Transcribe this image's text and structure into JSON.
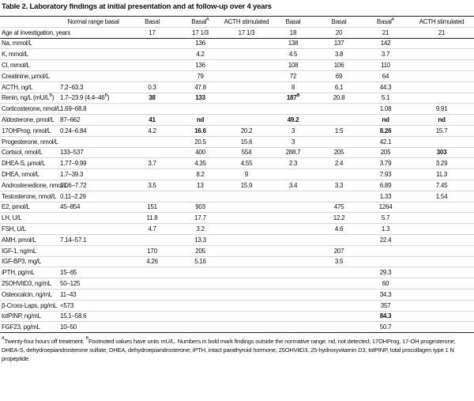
{
  "title": "Table 2. Laboratory findings at initial presentation and at follow-up over 4 years",
  "table": {
    "header": [
      "",
      "Normal range basal",
      "Basal",
      {
        "text": "Basal",
        "sup": "A"
      },
      "ACTH stimulated",
      "Basal",
      "Basal",
      {
        "text": "Basal",
        "sup": "A"
      },
      "ACTH stimulated"
    ],
    "age_row": [
      "Age at investigation, years",
      "",
      "17",
      "17 1/3",
      "17 1/3",
      "18",
      "20",
      "21",
      "21"
    ],
    "rows": [
      [
        "Na, mmol/L",
        "",
        "",
        "136",
        "",
        "138",
        "137",
        "142",
        ""
      ],
      [
        "K, mmol/L",
        "",
        "",
        "4.2",
        "",
        "4.5",
        "3.8",
        "3.7",
        ""
      ],
      [
        "Cl, mmol/L",
        "",
        "",
        "136",
        "",
        "108",
        "106",
        "110",
        ""
      ],
      [
        "Creatinine, µmol/L",
        "",
        "",
        "79",
        "",
        "72",
        "69",
        "64",
        ""
      ],
      [
        "ACTH, ng/L",
        "7.2–63.3",
        "0.3",
        "47.8",
        "",
        "8",
        "6.1",
        "44.3",
        ""
      ],
      [
        {
          "text": "Renin, ng/L (mU/L",
          "sup": "B",
          "after": ")"
        },
        {
          "text": "1.7–23.9 (4.4–46",
          "sup": "B",
          "after": ")"
        },
        {
          "text": "38",
          "bold": true
        },
        {
          "text": "133",
          "bold": true
        },
        "",
        {
          "text": "187",
          "sup": "B",
          "bold": true
        },
        "20.8",
        "5.1",
        ""
      ],
      [
        "Corticosterone, nmol/L",
        "1.69–68.8",
        "",
        "",
        "",
        "",
        "",
        "1.08",
        "9.91"
      ],
      [
        "Aldosterone, pmol/L",
        "87–662",
        {
          "text": "41",
          "bold": true
        },
        {
          "text": "nd",
          "bold": true
        },
        "",
        {
          "text": "49.2",
          "bold": true
        },
        "",
        {
          "text": "nd",
          "bold": true
        },
        {
          "text": "nd",
          "bold": true
        }
      ],
      [
        "17OHProg, nmol/L",
        "0.24–6.84",
        "4.2",
        {
          "text": "16.6",
          "bold": true
        },
        "20.2",
        "3",
        "1.5",
        {
          "text": "8.26",
          "bold": true
        },
        "15.7"
      ],
      [
        "Progesterone, nmol/L",
        "",
        "",
        "20.5",
        "15.6",
        "3",
        "",
        "42.1",
        ""
      ],
      [
        "Cortisol, nmol/L",
        "133–537",
        "",
        "400",
        "554",
        "288.7",
        "205",
        "205",
        {
          "text": "303",
          "bold": true
        }
      ],
      [
        "DHEA-S, µmol/L",
        "1.77–9.99",
        "3.7",
        "4.35",
        "4.55",
        "2.3",
        "2.4",
        "3.79",
        "3.29"
      ],
      [
        "DHEA, nmol/L",
        "1.7–39.3",
        "",
        "8.2",
        "9",
        "",
        "",
        "7.93",
        "11.3"
      ],
      [
        "Androstenedione, nmol/L",
        "1.06–7.72",
        "3.5",
        "13",
        "15.9",
        "3.4",
        "3.3",
        "6.89",
        "7.45"
      ],
      [
        "Testosterone, nmol/L",
        "0.11–2.29",
        "",
        "",
        "",
        "",
        "",
        "1.33",
        "1.54"
      ],
      [
        "E2, pmol/L",
        "45–854",
        "151",
        "903",
        "",
        "",
        "475",
        "1264",
        ""
      ],
      [
        "LH, U/L",
        "",
        "11.8",
        "17.7",
        "",
        "",
        "12.2",
        "5.7",
        ""
      ],
      [
        "FSH, U/L",
        "",
        "4.7",
        "3.2",
        "",
        "",
        "4.6",
        "1.3",
        ""
      ],
      [
        "AMH, pmol/L",
        "7.14–57.1",
        "",
        "13.3",
        "",
        "",
        "",
        "22.4",
        ""
      ],
      [
        "IGF-1, ng/mL",
        "",
        "170",
        "205",
        "",
        "",
        "207",
        "",
        ""
      ],
      [
        "IGF-BP3, mg/L",
        "",
        "4.26",
        "5.16",
        "",
        "",
        "3.5",
        "",
        ""
      ],
      [
        "iPTH, pg/mL",
        "15–65",
        "",
        "",
        "",
        "",
        "",
        "29.3",
        ""
      ],
      [
        "25OHVitD3, ng/mL",
        "50–125",
        "",
        "",
        "",
        "",
        "",
        "60",
        ""
      ],
      [
        "Osteocalcin, ng/mL",
        "11–43",
        "",
        "",
        "",
        "",
        "",
        "34.3",
        ""
      ],
      [
        "β-Cross-Laps, pg/mL",
        "<573",
        "",
        "",
        "",
        "",
        "",
        "357",
        ""
      ],
      [
        "totPINP, ng/mL",
        "15.1–58.6",
        "",
        "",
        "",
        "",
        "",
        {
          "text": "84.3",
          "bold": true
        },
        ""
      ],
      [
        "FGF23, pg/mL",
        "10–50",
        "",
        "",
        "",
        "",
        "",
        "50.7",
        ""
      ]
    ]
  },
  "footnote": [
    {
      "sup": "A",
      "text": "Twenty-four hours off treatment. "
    },
    {
      "sup": "B",
      "text": "Footnoted values have units mU/L. Numbers in bold mark findings outside the normative range. nd, not detected; 17OHProg, 17-OH progesterone; DHEA-S, dehydroepiandrosterone sulfate; DHEA, dehydroepiandrosterone; iPTH, intact parathyroid hormone; 25OHVitD3, 25-hydroxyvitamin D3; totPINP, total procollagen type 1 N propeptide."
    }
  ]
}
